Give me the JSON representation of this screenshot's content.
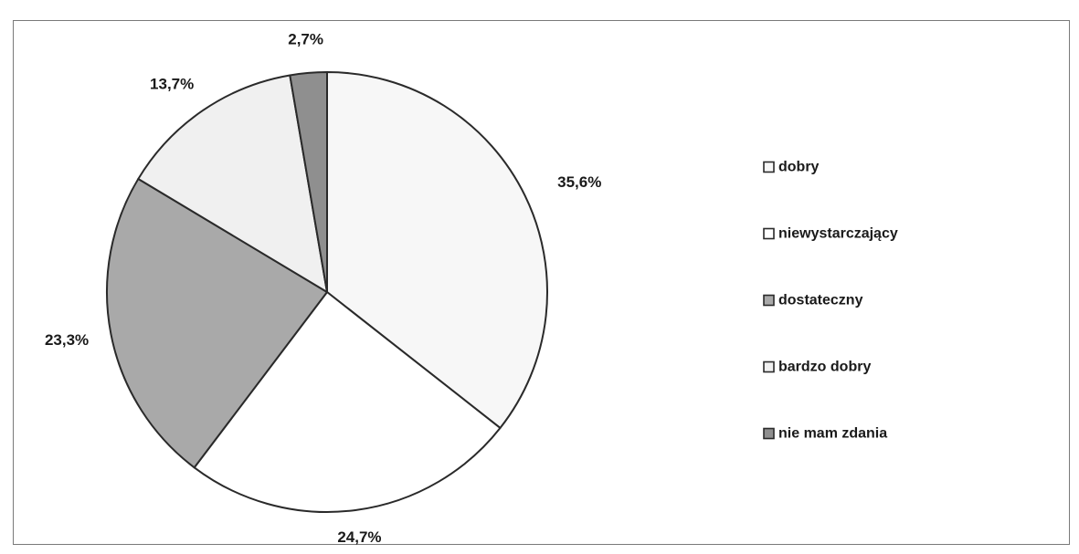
{
  "chart_data": {
    "type": "pie",
    "slices": [
      {
        "name": "dobry",
        "value": 35.6,
        "label": "35,6%",
        "color": "#f7f7f7"
      },
      {
        "name": "niewystarczający",
        "value": 24.7,
        "label": "24,7%",
        "color": "#ffffff"
      },
      {
        "name": "dostateczny",
        "value": 23.3,
        "label": "23,3%",
        "color": "#a9a9a9"
      },
      {
        "name": "bardzo dobry",
        "value": 13.7,
        "label": "13,7%",
        "color": "#f0f0f0"
      },
      {
        "name": "nie mam zdania",
        "value": 2.7,
        "label": "2,7%",
        "color": "#8f8f8f"
      }
    ],
    "start": "12 o'clock",
    "direction": "clockwise",
    "legend_position": "right",
    "slice_border_color": "#2a2a2a"
  }
}
